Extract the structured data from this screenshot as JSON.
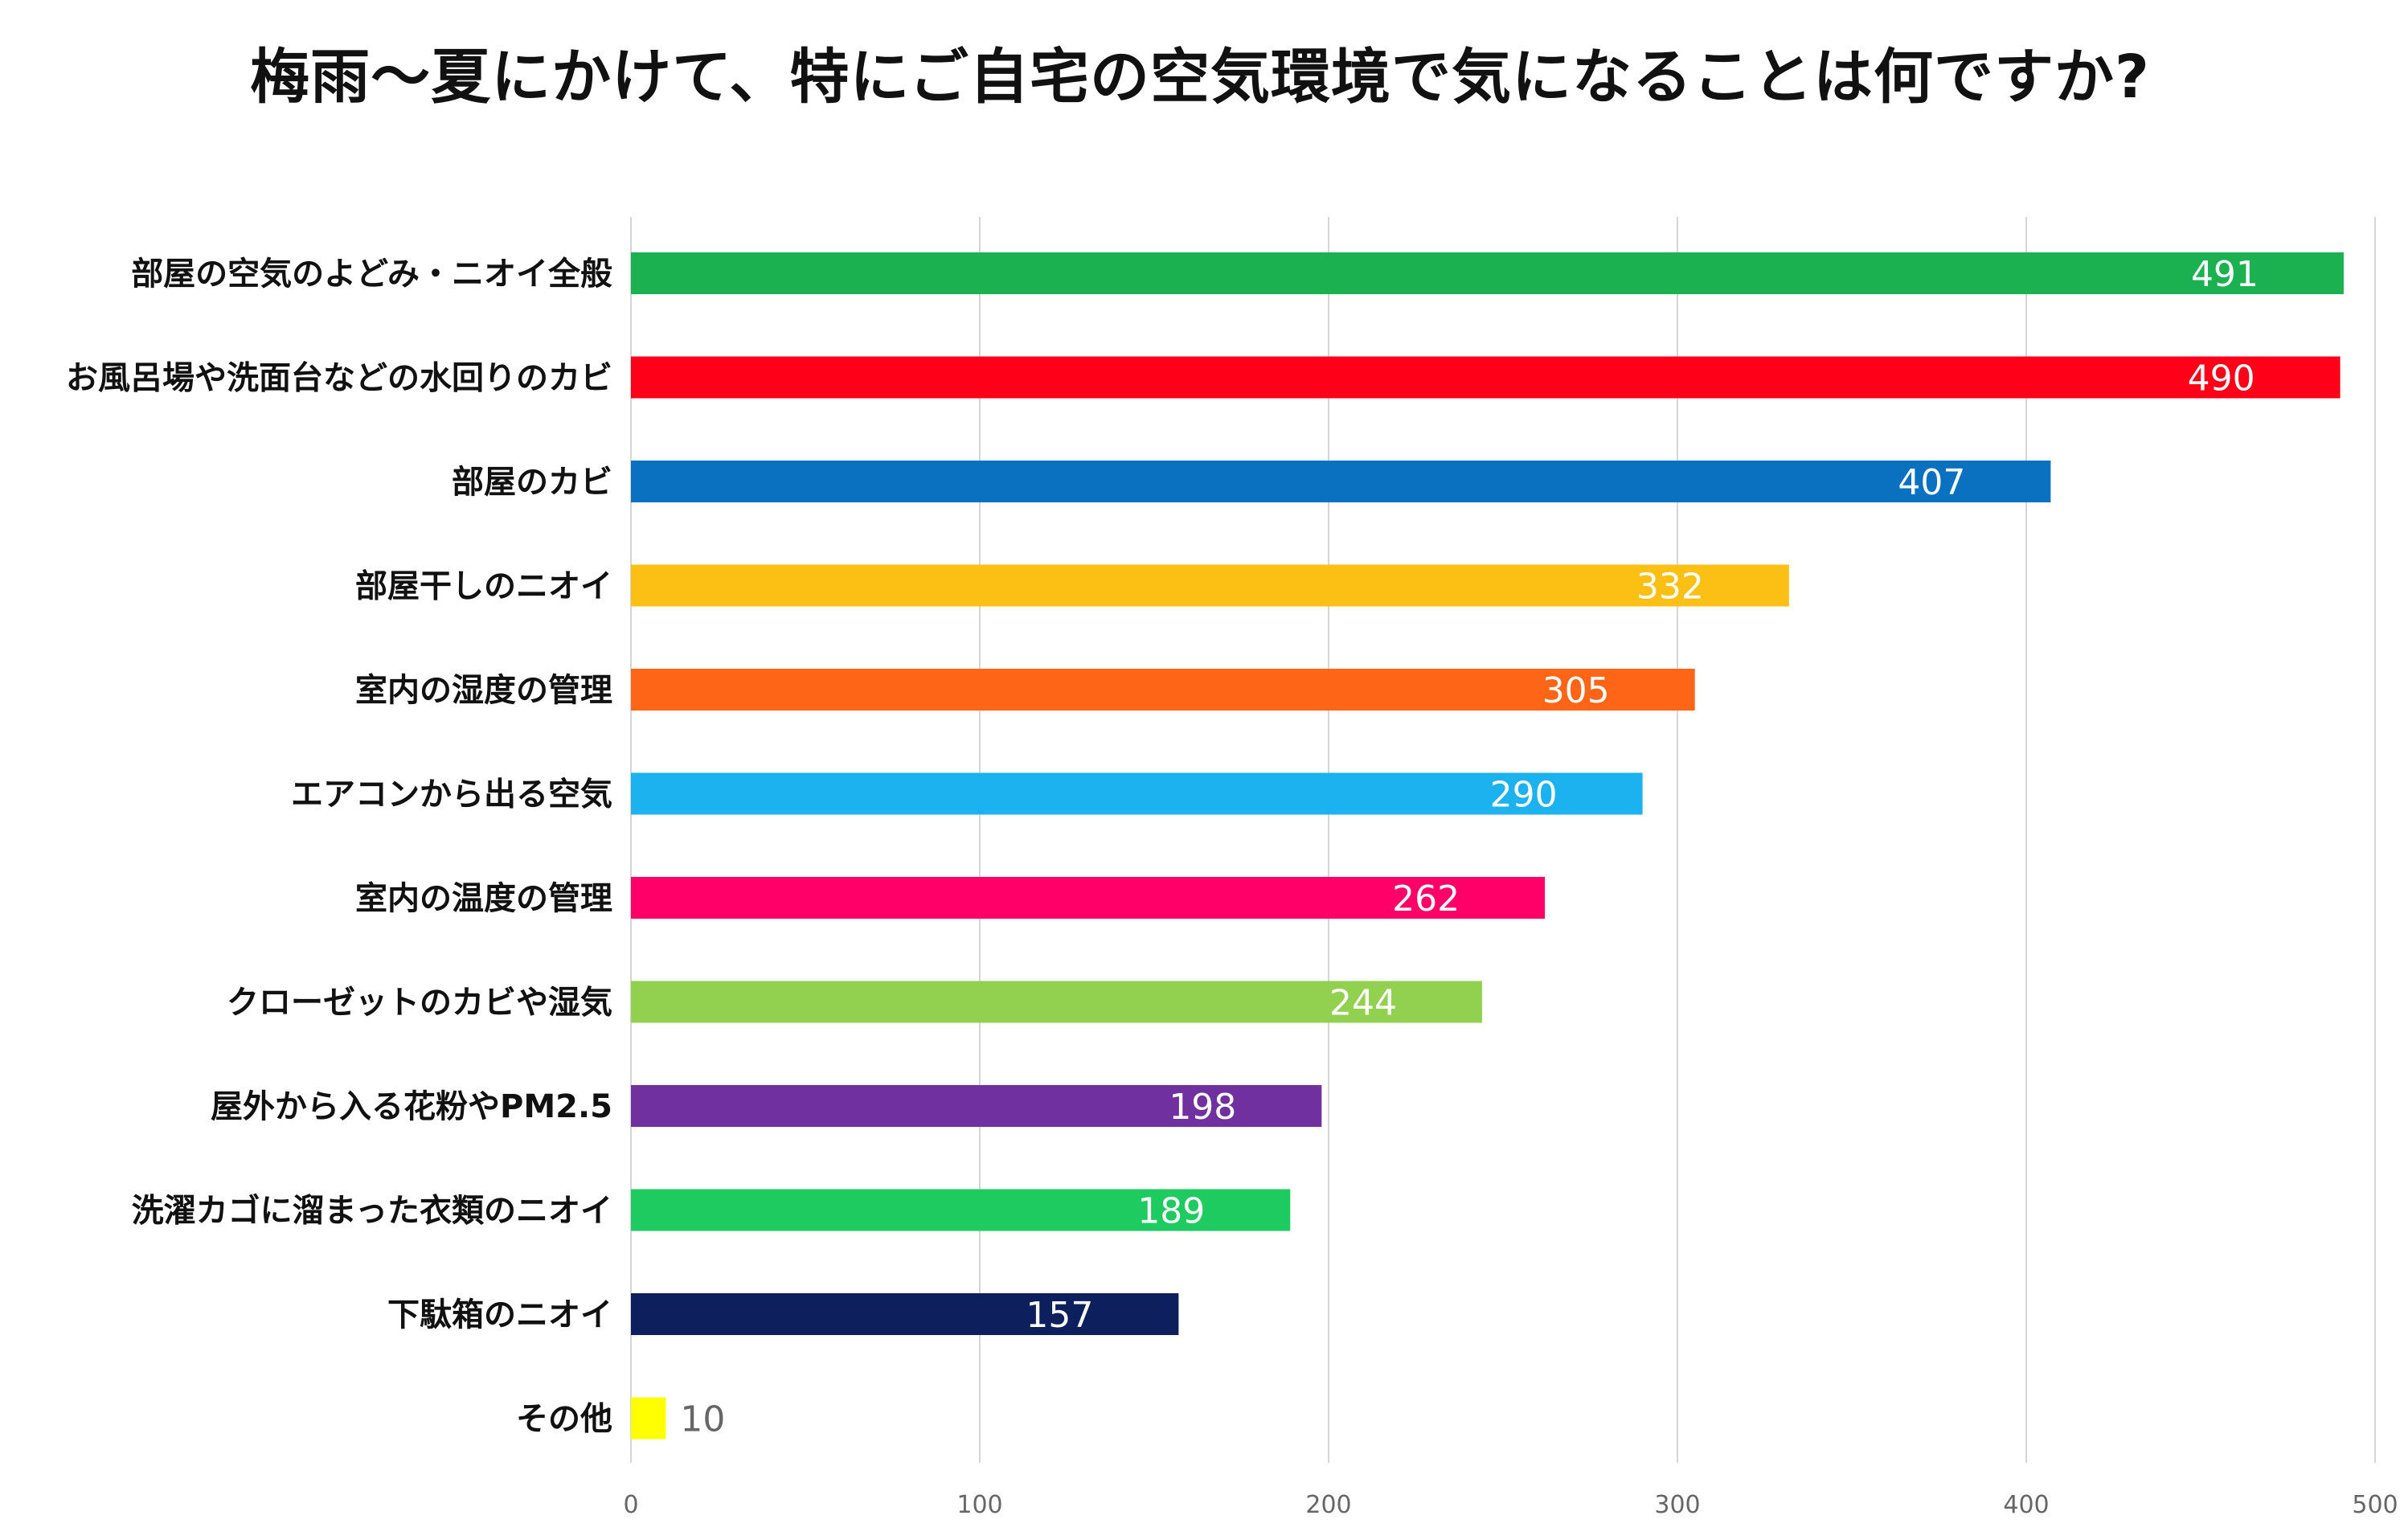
{
  "chart_data": {
    "type": "bar",
    "orientation": "horizontal",
    "title": "梅雨〜夏にかけて、特にご自宅の空気環境で気になることは何ですか?",
    "xlabel": "",
    "ylabel": "",
    "xlim": [
      0,
      500
    ],
    "xticks": [
      0,
      100,
      200,
      300,
      400,
      500
    ],
    "grid": true,
    "legend": "none",
    "categories": [
      "部屋の空気のよどみ・ニオイ全般",
      "お風呂場や洗面台などの水回りのカビ",
      "部屋のカビ",
      "部屋干しのニオイ",
      "室内の湿度の管理",
      "エアコンから出る空気",
      "室内の温度の管理",
      "クローゼットのカビや湿気",
      "屋外から入る花粉やPM2.5",
      "洗濯カゴに溜まった衣類のニオイ",
      "下駄箱のニオイ",
      "その他"
    ],
    "values": [
      491,
      490,
      407,
      332,
      305,
      290,
      262,
      244,
      198,
      189,
      157,
      10
    ],
    "colors": [
      "#1bb151",
      "#ff0019",
      "#0a70c0",
      "#fcc015",
      "#ff6516",
      "#1cb1ef",
      "#ff0068",
      "#92d04f",
      "#7030a0",
      "#1ecb60",
      "#0d1f5c",
      "#ffff00"
    ],
    "label_colors": [
      "#ffffff",
      "#ffffff",
      "#ffffff",
      "#ffffff",
      "#ffffff",
      "#ffffff",
      "#ffffff",
      "#ffffff",
      "#ffffff",
      "#ffffff",
      "#ffffff",
      "#666666"
    ]
  }
}
